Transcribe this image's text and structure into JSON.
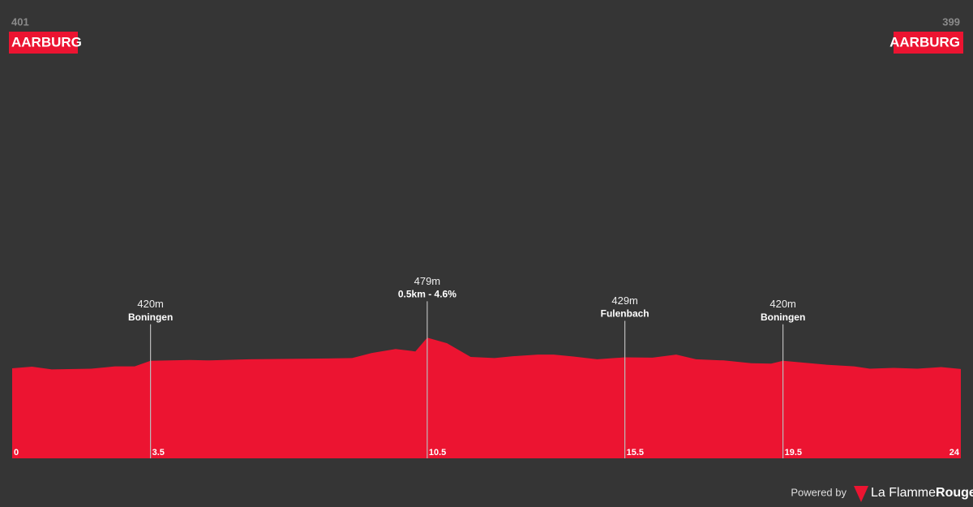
{
  "chart_data": {
    "type": "area",
    "color": "#ec1431",
    "start": {
      "value": 401,
      "name": "AARBURG"
    },
    "finish": {
      "value": 399,
      "name": "AARBURG"
    },
    "x": [
      0,
      0.5,
      1.0,
      2.0,
      2.6,
      3.1,
      3.5,
      4.5,
      5.0,
      6.0,
      7.0,
      8.0,
      8.6,
      9.1,
      9.7,
      10.2,
      10.5,
      11.0,
      11.6,
      12.2,
      12.7,
      13.3,
      13.7,
      14.2,
      14.8,
      15.5,
      16.2,
      16.8,
      17.3,
      18.0,
      18.7,
      19.2,
      19.5,
      20.6,
      21.3,
      21.7,
      22.3,
      22.9,
      23.5,
      24
    ],
    "values": [
      401,
      405,
      398,
      400,
      406,
      406,
      420,
      422,
      421,
      424,
      425,
      426,
      427,
      440,
      450,
      444,
      479,
      465,
      430,
      427,
      432,
      436,
      436,
      431,
      424,
      429,
      428,
      436,
      424,
      421,
      414,
      413,
      420,
      410,
      406,
      400,
      402,
      400,
      404,
      399
    ],
    "xlim": [
      0,
      24
    ],
    "ylim": [
      171,
      1300
    ],
    "xticks": [
      0,
      3.5,
      10.5,
      15.5,
      19.5,
      24
    ],
    "markers": [
      {
        "x": 3.5,
        "value": 420,
        "value_label": "420m",
        "name": "Boningen"
      },
      {
        "x": 10.5,
        "value": 479,
        "value_label": "479m",
        "name": "0.5km - 4.6%"
      },
      {
        "x": 15.5,
        "value": 429,
        "value_label": "429m",
        "name": "Fulenbach"
      },
      {
        "x": 19.5,
        "value": 420,
        "value_label": "420m",
        "name": "Boningen"
      }
    ]
  },
  "footer": {
    "powered": "Powered by",
    "brand": "La Flamme",
    "brand_accent": "Rouge"
  }
}
